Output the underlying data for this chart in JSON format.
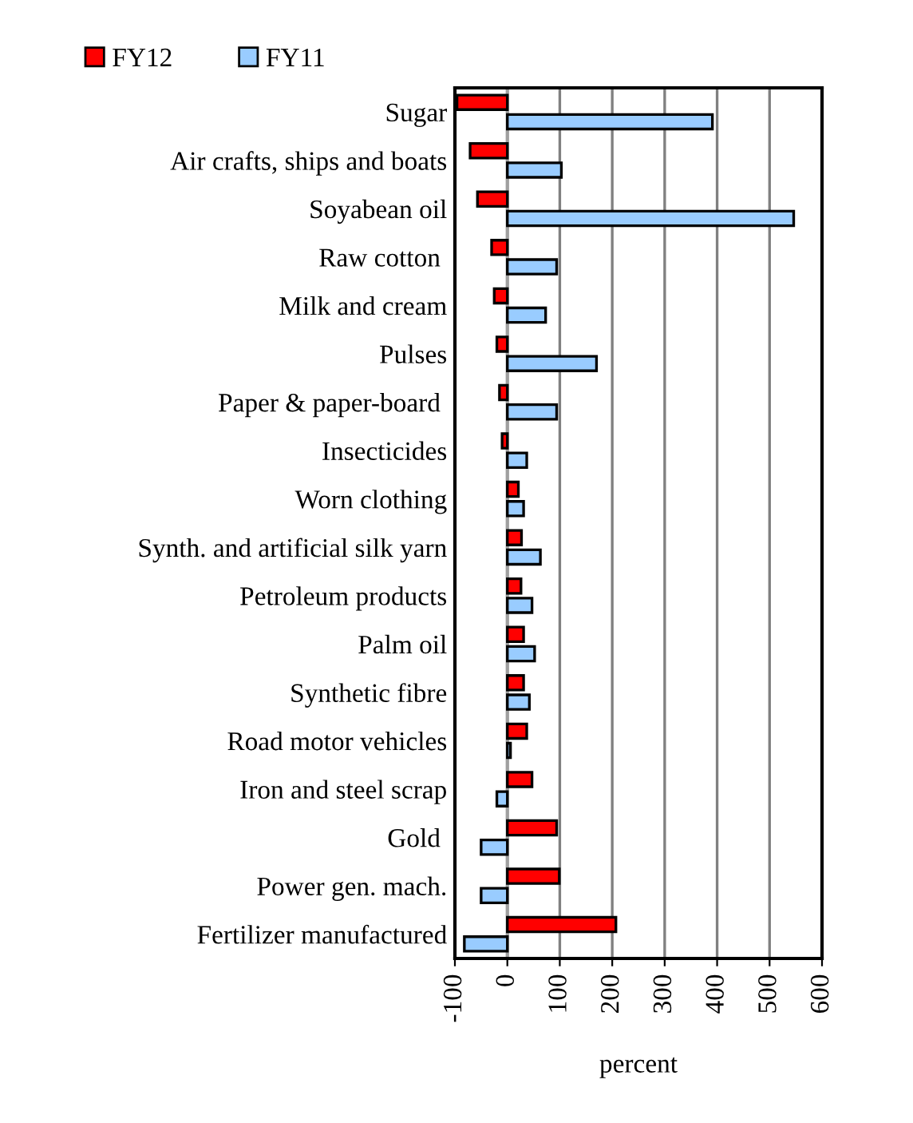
{
  "chart_data": {
    "type": "bar",
    "orientation": "horizontal",
    "xlabel": "percent",
    "categories": [
      "Sugar",
      "Air crafts, ships and boats",
      "Soyabean oil",
      "Raw cotton ",
      "Milk and cream",
      "Pulses",
      "Paper & paper-board ",
      "Insecticides",
      "Worn clothing",
      "Synth. and artificial silk yarn",
      "Petroleum products",
      "Palm oil",
      "Synthetic fibre",
      "Road motor vehicles",
      "Iron and steel scrap",
      "Gold ",
      "Power gen. mach.",
      "Fertilizer manufactured"
    ],
    "series": [
      {
        "name": "FY12",
        "color": "#ff0000",
        "values": [
          -96,
          -71,
          -57,
          -30,
          -25,
          -20,
          -15,
          -10,
          21,
          27,
          26,
          31,
          31,
          37,
          47,
          94,
          99,
          207
        ]
      },
      {
        "name": "FY11",
        "color": "#99ccff",
        "values": [
          391,
          103,
          546,
          94,
          73,
          170,
          94,
          37,
          31,
          63,
          47,
          52,
          42,
          6,
          -20,
          -50,
          -50,
          -82
        ]
      }
    ],
    "xlim": [
      -100,
      600
    ],
    "xticks": [
      -100,
      0,
      100,
      200,
      300,
      400,
      500,
      600
    ],
    "grid": "x",
    "legend": "top left"
  }
}
